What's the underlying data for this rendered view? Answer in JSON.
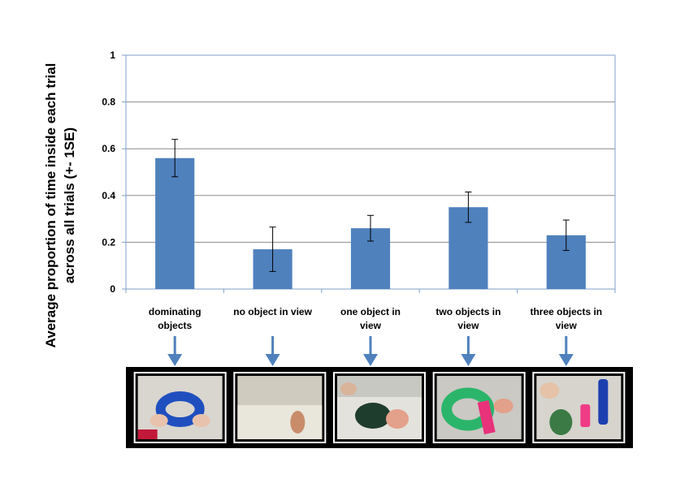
{
  "chart_data": {
    "type": "bar",
    "title": "",
    "xlabel": "",
    "ylabel_lines": [
      "Average proportion of time inside each trial",
      "across all trials (+- 1SE)"
    ],
    "ylim": [
      0,
      1
    ],
    "yticks": [
      "0",
      "0.2",
      "0.4",
      "0.6",
      "0.8",
      "1"
    ],
    "ytick_values": [
      0,
      0.2,
      0.4,
      0.6,
      0.8,
      1
    ],
    "categories": [
      [
        "dominating",
        "objects"
      ],
      [
        "no object in view"
      ],
      [
        "one object in",
        "view"
      ],
      [
        "two objects in",
        "view"
      ],
      [
        "three objects in",
        "view"
      ]
    ],
    "values": [
      0.56,
      0.17,
      0.26,
      0.35,
      0.23
    ],
    "error": [
      0.08,
      0.095,
      0.055,
      0.065,
      0.065
    ],
    "grid": true,
    "bar_color": "#4f81bd",
    "error_color": "#000000",
    "axis_color": "#7f9fc9",
    "grid_color": "#8c8c8c"
  },
  "thumbnails": {
    "border_color": "#000000",
    "frame_color": "#ffffff",
    "arrow_color": "#4f81bd",
    "items": [
      {
        "scene": "blue-ring-held",
        "bg": "#d9d5cf"
      },
      {
        "scene": "no-object-hand",
        "bg": "#cfcbbf"
      },
      {
        "scene": "dark-green-object",
        "bg": "#c8c8c2"
      },
      {
        "scene": "green-ring-pink",
        "bg": "#cbc9c3"
      },
      {
        "scene": "three-objects",
        "bg": "#d6d4cd"
      }
    ]
  }
}
